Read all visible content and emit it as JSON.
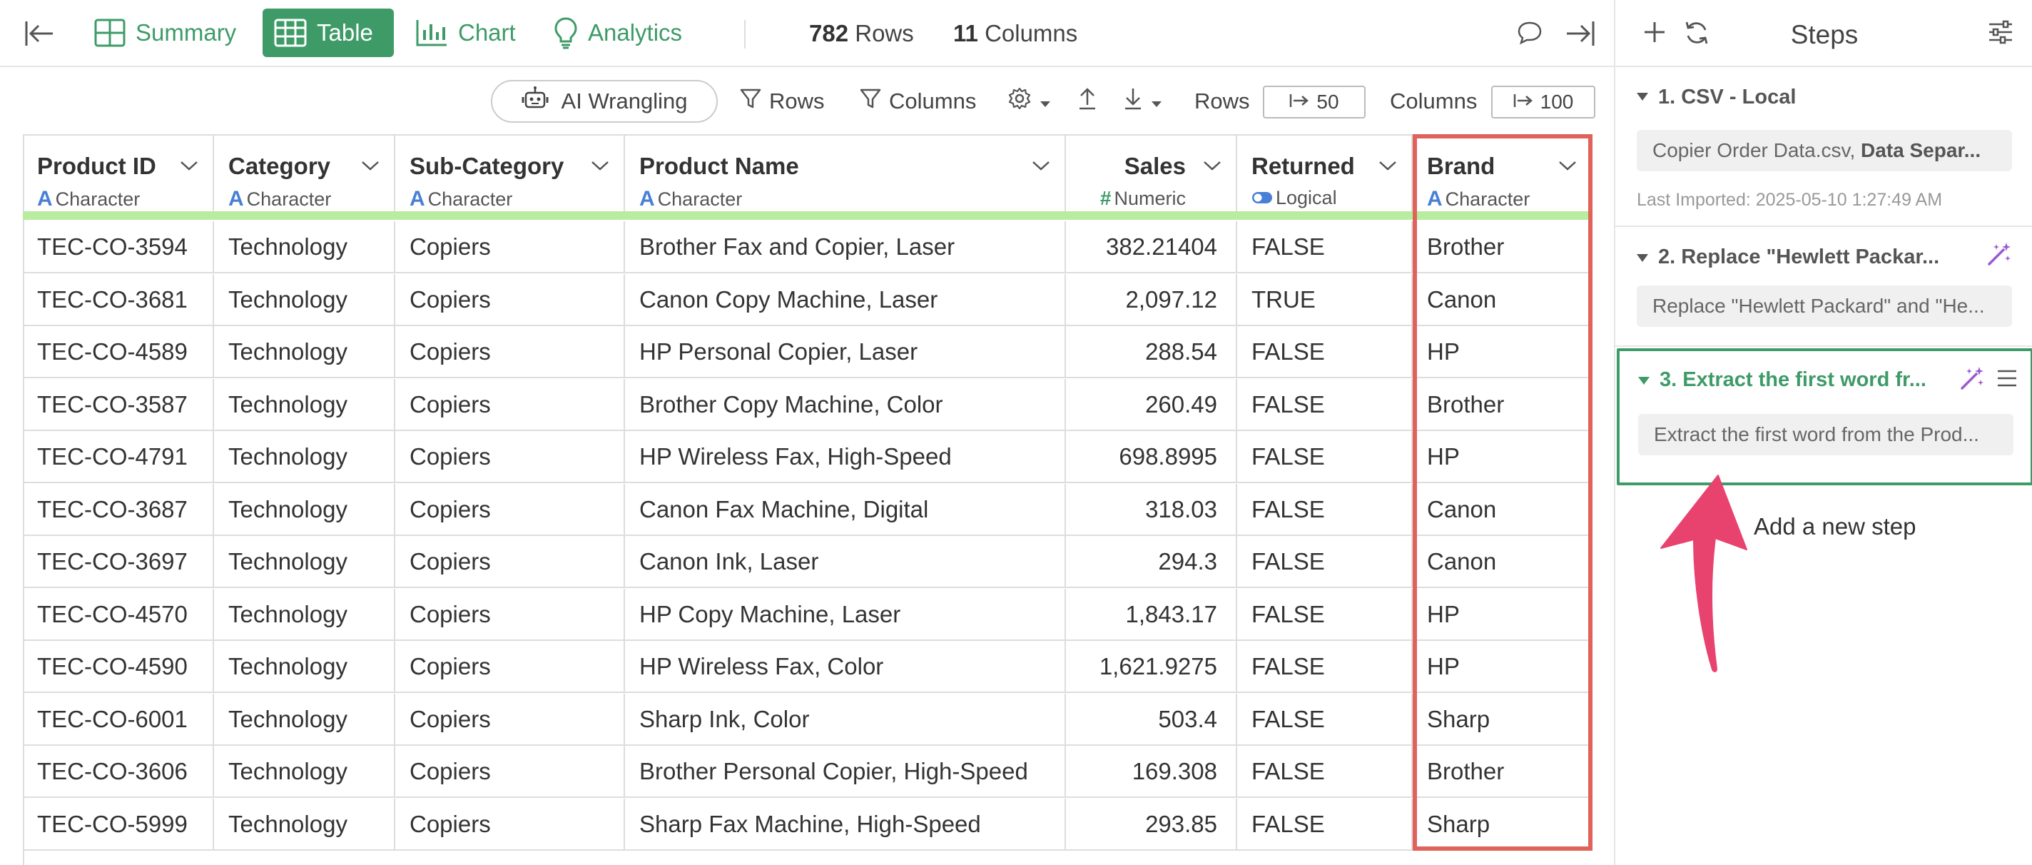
{
  "topbar": {
    "tabs": [
      {
        "label": "Summary",
        "icon": "summary-grid-icon",
        "active": false
      },
      {
        "label": "Table",
        "icon": "table-icon",
        "active": true
      },
      {
        "label": "Chart",
        "icon": "chart-bar-icon",
        "active": false
      },
      {
        "label": "Analytics",
        "icon": "lightbulb-icon",
        "active": false
      }
    ],
    "rows_count": "782",
    "rows_label": "Rows",
    "columns_count": "11",
    "columns_label": "Columns"
  },
  "toolbar": {
    "ai_label": "AI Wrangling",
    "rows_filter_label": "Rows",
    "columns_filter_label": "Columns",
    "rows_label": "Rows",
    "rows_value": "50",
    "columns_label": "Columns",
    "columns_value": "100"
  },
  "table": {
    "columns": [
      {
        "name": "Product ID",
        "type": "Character"
      },
      {
        "name": "Category",
        "type": "Character"
      },
      {
        "name": "Sub-Category",
        "type": "Character"
      },
      {
        "name": "Product Name",
        "type": "Character"
      },
      {
        "name": "Sales",
        "type": "Numeric"
      },
      {
        "name": "Returned",
        "type": "Logical"
      },
      {
        "name": "Brand",
        "type": "Character"
      }
    ],
    "rows": [
      [
        "TEC-CO-3594",
        "Technology",
        "Copiers",
        "Brother Fax and Copier, Laser",
        "382.21404",
        "FALSE",
        "Brother"
      ],
      [
        "TEC-CO-3681",
        "Technology",
        "Copiers",
        "Canon Copy Machine, Laser",
        "2,097.12",
        "TRUE",
        "Canon"
      ],
      [
        "TEC-CO-4589",
        "Technology",
        "Copiers",
        "HP Personal Copier, Laser",
        "288.54",
        "FALSE",
        "HP"
      ],
      [
        "TEC-CO-3587",
        "Technology",
        "Copiers",
        "Brother Copy Machine, Color",
        "260.49",
        "FALSE",
        "Brother"
      ],
      [
        "TEC-CO-4791",
        "Technology",
        "Copiers",
        "HP Wireless Fax, High-Speed",
        "698.8995",
        "FALSE",
        "HP"
      ],
      [
        "TEC-CO-3687",
        "Technology",
        "Copiers",
        "Canon Fax Machine, Digital",
        "318.03",
        "FALSE",
        "Canon"
      ],
      [
        "TEC-CO-3697",
        "Technology",
        "Copiers",
        "Canon Ink, Laser",
        "294.3",
        "FALSE",
        "Canon"
      ],
      [
        "TEC-CO-4570",
        "Technology",
        "Copiers",
        "HP Copy Machine, Laser",
        "1,843.17",
        "FALSE",
        "HP"
      ],
      [
        "TEC-CO-4590",
        "Technology",
        "Copiers",
        "HP Wireless Fax, Color",
        "1,621.9275",
        "FALSE",
        "HP"
      ],
      [
        "TEC-CO-6001",
        "Technology",
        "Copiers",
        "Sharp Ink, Color",
        "503.4",
        "FALSE",
        "Sharp"
      ],
      [
        "TEC-CO-3606",
        "Technology",
        "Copiers",
        "Brother Personal Copier, High-Speed",
        "169.308",
        "FALSE",
        "Brother"
      ],
      [
        "TEC-CO-5999",
        "Technology",
        "Copiers",
        "Sharp Fax Machine, High-Speed",
        "293.85",
        "FALSE",
        "Sharp"
      ]
    ]
  },
  "steps_panel": {
    "title": "Steps",
    "steps": [
      {
        "title": "1. CSV - Local",
        "box_plain": "Copier Order Data.csv, ",
        "box_bold": "Data Separ...",
        "meta": "Last Imported: 2025-05-10 1:27:49 AM"
      },
      {
        "title": "2. Replace \"Hewlett Packar...",
        "box": "Replace \"Hewlett Packard\" and \"He..."
      },
      {
        "title": "3. Extract the first word fr...",
        "box": "Extract the first word from the Prod..."
      }
    ],
    "add_step_label": "Add a new step"
  },
  "colors": {
    "accent_green": "#3e9b68",
    "highlight_red": "#e0625b",
    "arrow_pink": "#e8436f",
    "magic_purple": "#9b59d0"
  }
}
